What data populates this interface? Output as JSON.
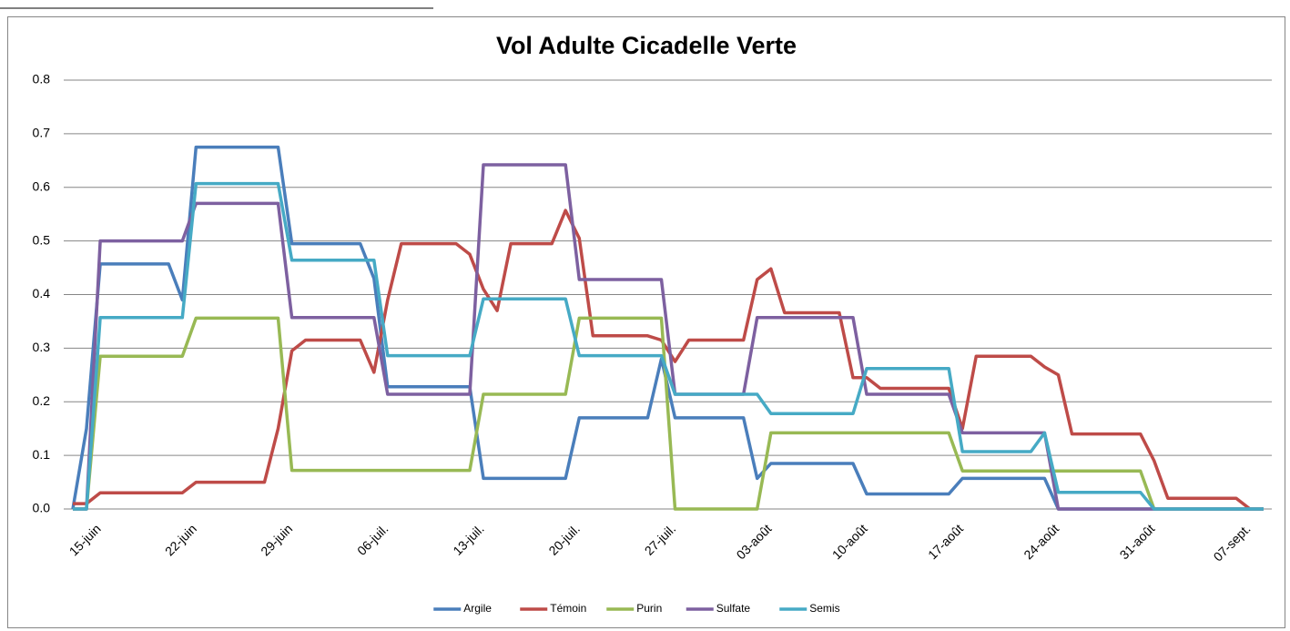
{
  "chart_data": {
    "type": "line",
    "title": "Vol Adulte Cicadelle Verte",
    "categories": [
      null,
      "15-juin",
      null,
      null,
      null,
      null,
      null,
      null,
      "22-juin",
      null,
      null,
      null,
      null,
      null,
      null,
      "29-juin",
      null,
      null,
      null,
      null,
      null,
      null,
      "06-juil.",
      null,
      null,
      null,
      null,
      null,
      null,
      "13-juil.",
      null,
      null,
      null,
      null,
      null,
      null,
      "20-juil.",
      null,
      null,
      null,
      null,
      null,
      null,
      "27-juil.",
      null,
      null,
      null,
      null,
      null,
      null,
      "03-août",
      null,
      null,
      null,
      null,
      null,
      null,
      "10-août",
      null,
      null,
      null,
      null,
      null,
      null,
      "17-août",
      null,
      null,
      null,
      null,
      null,
      null,
      "24-août",
      null,
      null,
      null,
      null,
      null,
      null,
      "31-août",
      null,
      null,
      null,
      null,
      null,
      null,
      "07-sept.",
      null,
      null
    ],
    "series": [
      {
        "name": "Argile",
        "color": "#4a7ebb",
        "values": [
          0,
          0.15,
          0.457,
          0.457,
          0.457,
          0.457,
          0.457,
          0.457,
          0.39,
          0.675,
          0.675,
          0.675,
          0.675,
          0.675,
          0.675,
          0.675,
          0.495,
          0.495,
          0.495,
          0.495,
          0.495,
          0.495,
          0.43,
          0.228,
          0.228,
          0.228,
          0.228,
          0.228,
          0.228,
          0.228,
          0.057,
          0.057,
          0.057,
          0.057,
          0.057,
          0.057,
          0.057,
          0.17,
          0.17,
          0.17,
          0.17,
          0.17,
          0.17,
          0.28,
          0.17,
          0.17,
          0.17,
          0.17,
          0.17,
          0.17,
          0.057,
          0.085,
          0.085,
          0.085,
          0.085,
          0.085,
          0.085,
          0.085,
          0.028,
          0.028,
          0.028,
          0.028,
          0.028,
          0.028,
          0.028,
          0.057,
          0.057,
          0.057,
          0.057,
          0.057,
          0.057,
          0.057,
          0,
          0,
          0,
          0,
          0,
          0,
          0,
          0,
          0,
          0,
          0,
          0,
          0,
          0,
          0,
          0
        ]
      },
      {
        "name": "Témoin",
        "color": "#be4b48",
        "values": [
          0.01,
          0.01,
          0.03,
          0.03,
          0.03,
          0.03,
          0.03,
          0.03,
          0.03,
          0.05,
          0.05,
          0.05,
          0.05,
          0.05,
          0.05,
          0.15,
          0.295,
          0.315,
          0.315,
          0.315,
          0.315,
          0.315,
          0.255,
          0.39,
          0.495,
          0.495,
          0.495,
          0.495,
          0.495,
          0.475,
          0.41,
          0.37,
          0.495,
          0.495,
          0.495,
          0.495,
          0.557,
          0.505,
          0.323,
          0.323,
          0.323,
          0.323,
          0.323,
          0.315,
          0.275,
          0.315,
          0.315,
          0.315,
          0.315,
          0.315,
          0.428,
          0.448,
          0.366,
          0.366,
          0.366,
          0.366,
          0.366,
          0.245,
          0.245,
          0.225,
          0.225,
          0.225,
          0.225,
          0.225,
          0.225,
          0.15,
          0.285,
          0.285,
          0.285,
          0.285,
          0.285,
          0.265,
          0.25,
          0.14,
          0.14,
          0.14,
          0.14,
          0.14,
          0.14,
          0.09,
          0.02,
          0.02,
          0.02,
          0.02,
          0.02,
          0.02,
          0,
          0
        ]
      },
      {
        "name": "Purin",
        "color": "#98b954",
        "values": [
          0,
          0,
          0.285,
          0.285,
          0.285,
          0.285,
          0.285,
          0.285,
          0.285,
          0.356,
          0.356,
          0.356,
          0.356,
          0.356,
          0.356,
          0.356,
          0.072,
          0.072,
          0.072,
          0.072,
          0.072,
          0.072,
          0.072,
          0.072,
          0.072,
          0.072,
          0.072,
          0.072,
          0.072,
          0.072,
          0.214,
          0.214,
          0.214,
          0.214,
          0.214,
          0.214,
          0.214,
          0.356,
          0.356,
          0.356,
          0.356,
          0.356,
          0.356,
          0.356,
          0,
          0,
          0,
          0,
          0,
          0,
          0,
          0.142,
          0.142,
          0.142,
          0.142,
          0.142,
          0.142,
          0.142,
          0.142,
          0.142,
          0.142,
          0.142,
          0.142,
          0.142,
          0.142,
          0.071,
          0.071,
          0.071,
          0.071,
          0.071,
          0.071,
          0.071,
          0.071,
          0.071,
          0.071,
          0.071,
          0.071,
          0.071,
          0.071,
          0,
          0,
          0,
          0,
          0,
          0,
          0,
          0,
          0
        ]
      },
      {
        "name": "Sulfate",
        "color": "#7d60a0",
        "values": [
          0,
          0,
          0.5,
          0.5,
          0.5,
          0.5,
          0.5,
          0.5,
          0.5,
          0.57,
          0.57,
          0.57,
          0.57,
          0.57,
          0.57,
          0.57,
          0.357,
          0.357,
          0.357,
          0.357,
          0.357,
          0.357,
          0.357,
          0.214,
          0.214,
          0.214,
          0.214,
          0.214,
          0.214,
          0.214,
          0.642,
          0.642,
          0.642,
          0.642,
          0.642,
          0.642,
          0.642,
          0.428,
          0.428,
          0.428,
          0.428,
          0.428,
          0.428,
          0.428,
          0.214,
          0.214,
          0.214,
          0.214,
          0.214,
          0.214,
          0.357,
          0.357,
          0.357,
          0.357,
          0.357,
          0.357,
          0.357,
          0.357,
          0.214,
          0.214,
          0.214,
          0.214,
          0.214,
          0.214,
          0.214,
          0.142,
          0.142,
          0.142,
          0.142,
          0.142,
          0.142,
          0.142,
          0,
          0,
          0,
          0,
          0,
          0,
          0,
          0,
          0,
          0,
          0,
          0,
          0,
          0,
          0,
          0
        ]
      },
      {
        "name": "Semis",
        "color": "#46aac5",
        "values": [
          0,
          0,
          0.357,
          0.357,
          0.357,
          0.357,
          0.357,
          0.357,
          0.357,
          0.607,
          0.607,
          0.607,
          0.607,
          0.607,
          0.607,
          0.607,
          0.464,
          0.464,
          0.464,
          0.464,
          0.464,
          0.464,
          0.464,
          0.286,
          0.286,
          0.286,
          0.286,
          0.286,
          0.286,
          0.286,
          0.392,
          0.392,
          0.392,
          0.392,
          0.392,
          0.392,
          0.392,
          0.286,
          0.286,
          0.286,
          0.286,
          0.286,
          0.286,
          0.286,
          0.214,
          0.214,
          0.214,
          0.214,
          0.214,
          0.214,
          0.214,
          0.178,
          0.178,
          0.178,
          0.178,
          0.178,
          0.178,
          0.178,
          0.262,
          0.262,
          0.262,
          0.262,
          0.262,
          0.262,
          0.262,
          0.107,
          0.107,
          0.107,
          0.107,
          0.107,
          0.107,
          0.142,
          0.031,
          0.031,
          0.031,
          0.031,
          0.031,
          0.031,
          0.031,
          0,
          0,
          0,
          0,
          0,
          0,
          0,
          0,
          0
        ]
      }
    ],
    "ylim": [
      0,
      0.8
    ],
    "yticks": [
      {
        "value": 0,
        "label": "0.0"
      },
      0.1,
      0.2,
      0.3,
      0.4,
      0.5,
      0.6,
      0.7,
      0.8
    ],
    "grid": true,
    "legend": "bottom"
  }
}
